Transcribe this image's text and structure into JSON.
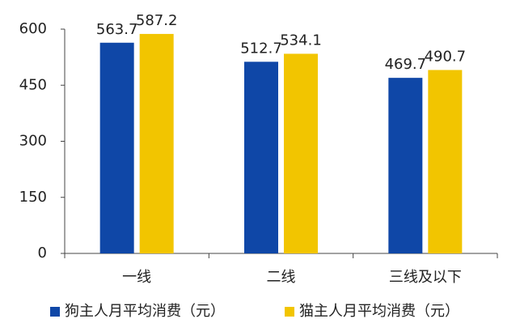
{
  "chart_data": {
    "type": "bar",
    "categories": [
      "一线",
      "二线",
      "三线及以下"
    ],
    "series": [
      {
        "name": "狗主人月平均消费（元）",
        "color": "#0f47a7",
        "values": [
          563.7,
          512.7,
          469.7
        ]
      },
      {
        "name": "猫主人月平均消费（元）",
        "color": "#f2c500",
        "values": [
          587.2,
          534.1,
          490.7
        ]
      }
    ],
    "ylim": [
      0,
      600
    ],
    "yticks": [
      0,
      150,
      300,
      450,
      600
    ],
    "legend": "bottom"
  }
}
